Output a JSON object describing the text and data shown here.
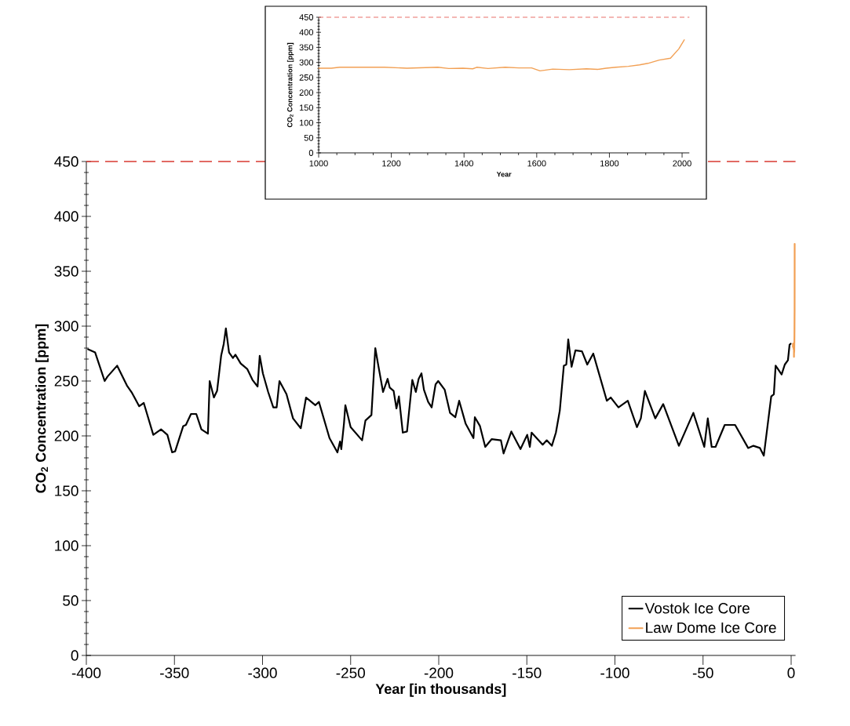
{
  "chart_data": [
    {
      "type": "line",
      "xlabel": "Year [in thousands]",
      "ylabel": "CO$_{2}$ Concentration [ppm]",
      "xlim": [
        -400,
        2.5
      ],
      "ylim": [
        0,
        450
      ],
      "xticks": [
        -400,
        -350,
        -300,
        -250,
        -200,
        -150,
        -100,
        -50,
        0
      ],
      "yticks": [
        0,
        50,
        100,
        150,
        200,
        250,
        300,
        350,
        400,
        450
      ],
      "legend": "bottom right",
      "series": [
        {
          "name": "Vostok Ice Core",
          "color": "#000000",
          "x": [
            -399,
            -395,
            -389.6,
            -388,
            -382.5,
            -377,
            -374,
            -370,
            -367.4,
            -362,
            -357.6,
            -354,
            -351.3,
            -349.6,
            -345,
            -343.5,
            -340.6,
            -337.6,
            -334.7,
            -331,
            -330,
            -327.6,
            -325.8,
            -323.5,
            -322,
            -320.8,
            -319,
            -316.8,
            -315.4,
            -312.4,
            -308.7,
            -305.7,
            -302.8,
            -301.6,
            -299.8,
            -296.8,
            -293.9,
            -292,
            -290.4,
            -286.4,
            -282.7,
            -278.3,
            -275.3,
            -270,
            -268,
            -262,
            -257.5,
            -256,
            -255.3,
            -253.8,
            -253,
            -250,
            -243.5,
            -241.6,
            -238.2,
            -236,
            -234.5,
            -231.6,
            -229,
            -227.8,
            -225.6,
            -224,
            -222.6,
            -220.4,
            -218,
            -215,
            -213,
            -211.4,
            -209.8,
            -208.4,
            -206,
            -204,
            -201.8,
            -200.3,
            -196.6,
            -193.6,
            -190.6,
            -188.4,
            -184.7,
            -180.3,
            -179.5,
            -176.6,
            -173.6,
            -170,
            -164.7,
            -163.2,
            -158.8,
            -153.6,
            -149.8,
            -148.3,
            -147.3,
            -141,
            -138.7,
            -135.8,
            -133.5,
            -131.3,
            -129,
            -127.6,
            -126.5,
            -124.6,
            -122.4,
            -118.7,
            -115.7,
            -112.3,
            -109.8,
            -104.6,
            -102.4,
            -98,
            -92.7,
            -87.5,
            -85.3,
            -83,
            -77.1,
            -72.6,
            -63.7,
            -55.5,
            -49.3,
            -47.3,
            -45.1,
            -42.9,
            -37.7,
            -31.8,
            -24.4,
            -21.4,
            -17.7,
            -15.5,
            -11.3,
            -9.8,
            -8.8,
            -5.4,
            -3.6,
            -1.8,
            -0.9,
            -0.3
          ],
          "values": [
            279,
            276,
            250,
            254,
            264,
            246,
            239,
            227,
            230,
            201,
            206,
            201,
            185,
            186,
            209,
            210,
            220,
            220,
            206,
            202,
            250,
            235,
            241,
            273,
            284,
            298,
            276,
            271,
            274,
            266,
            261,
            251,
            245,
            273,
            257,
            240,
            226,
            226,
            250,
            238,
            216,
            207,
            235,
            228,
            231,
            198,
            185,
            195,
            188,
            211,
            228,
            208,
            196,
            214,
            219,
            280,
            266,
            240,
            252,
            244,
            241,
            225,
            236,
            203,
            204,
            251,
            240,
            252,
            257,
            242,
            231,
            226,
            247,
            250,
            242,
            221,
            217,
            232,
            211,
            198,
            217,
            209,
            190,
            197,
            196,
            184,
            204,
            188,
            201,
            190,
            203,
            192,
            196,
            191,
            203,
            223,
            264,
            265,
            288,
            263,
            278,
            277,
            265,
            275,
            261,
            232,
            235,
            226,
            232,
            208,
            216,
            241,
            216,
            229,
            191,
            221,
            190,
            216,
            190,
            190,
            210,
            210,
            189,
            191,
            189,
            182,
            236,
            238,
            264,
            256,
            265,
            269,
            283,
            284
          ]
        },
        {
          "name": "Law Dome Ice Core",
          "color": "#f2a054",
          "x": [
            1.0,
            1.035,
            1.058,
            1.127,
            1.181,
            1.243,
            1.328,
            1.358,
            1.397,
            1.424,
            1.435,
            1.466,
            1.513,
            1.551,
            1.586,
            1.609,
            1.644,
            1.69,
            1.737,
            1.768,
            1.791,
            1.818,
            1.852,
            1.883,
            1.906,
            1.937,
            1.968,
            1.991,
            2.006
          ],
          "values": [
            281,
            281,
            284,
            284,
            284,
            281,
            284,
            280,
            281,
            279,
            284,
            280,
            284,
            282,
            282,
            272,
            278,
            276,
            279,
            277,
            281,
            284,
            287,
            292,
            297,
            308,
            314,
            345,
            375
          ]
        }
      ],
      "ref_lines": [
        {
          "axis": "y",
          "value": 450,
          "color": "#d93a32",
          "line_style": "dashed"
        }
      ]
    },
    {
      "type": "line",
      "xlabel": "Year",
      "ylabel": "CO$_{2}$ Concentration [ppm]",
      "xlim": [
        1000,
        2020
      ],
      "ylim": [
        0,
        450
      ],
      "xticks": [
        1000,
        1200,
        1400,
        1600,
        1800,
        2000
      ],
      "yticks": [
        0,
        50,
        100,
        150,
        200,
        250,
        300,
        350,
        400,
        450
      ],
      "series": [
        {
          "color": "#f2a054",
          "x": [
            1000,
            1035,
            1058,
            1127,
            1181,
            1243,
            1328,
            1358,
            1397,
            1424,
            1435,
            1466,
            1513,
            1551,
            1586,
            1609,
            1644,
            1690,
            1737,
            1768,
            1791,
            1818,
            1852,
            1883,
            1906,
            1937,
            1968,
            1991,
            2006
          ],
          "values": [
            281,
            281,
            284,
            284,
            284,
            281,
            284,
            280,
            281,
            279,
            284,
            280,
            284,
            282,
            282,
            272,
            278,
            276,
            279,
            277,
            281,
            284,
            287,
            292,
            297,
            308,
            314,
            345,
            375
          ]
        }
      ],
      "ref_lines": [
        {
          "axis": "y",
          "value": 450,
          "color": "#e8706a",
          "line_style": "dashed"
        }
      ]
    }
  ]
}
